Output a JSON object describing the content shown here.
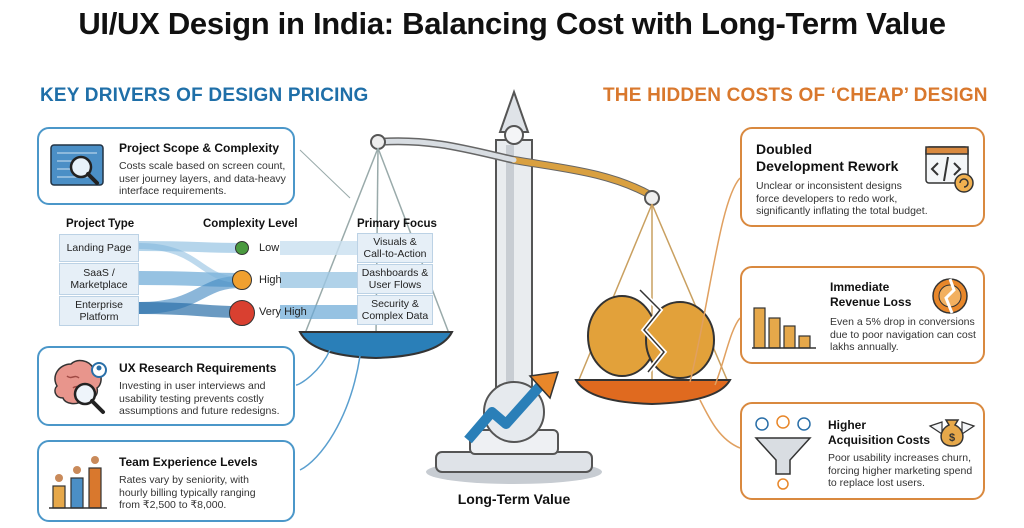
{
  "title": "UI/UX Design in India: Balancing Cost with Long-Term Value",
  "left_section": {
    "heading": "KEY DRIVERS OF DESIGN PRICING",
    "cards": [
      {
        "title": "Project Scope & Complexity",
        "desc": [
          "Costs scale based on screen count,",
          "user journey layers, and data-heavy",
          "interface requirements."
        ]
      },
      {
        "title": "UX Research Requirements",
        "desc": [
          "Investing in user interviews and",
          "usability testing prevents costly",
          "assumptions and future redesigns."
        ]
      },
      {
        "title": "Team Experience Levels",
        "desc": [
          "Rates vary by seniority, with",
          "hourly billing typically ranging",
          "from ₹2,500 to ₹8,000."
        ]
      }
    ],
    "flow": {
      "col_project_type": "Project Type",
      "col_complexity": "Complexity Level",
      "col_focus": "Primary Focus",
      "project_types": [
        [
          "Landing Page"
        ],
        [
          "SaaS /",
          "Marketplace"
        ],
        [
          "Enterprise",
          "Platform"
        ]
      ],
      "levels": [
        "Low",
        "High",
        "Very High"
      ],
      "focus": [
        [
          "Visuals &",
          "Call-to-Action"
        ],
        [
          "Dashboards &",
          "User Flows"
        ],
        [
          "Security &",
          "Complex Data"
        ]
      ]
    }
  },
  "right_section": {
    "heading": "THE HIDDEN COSTS OF ‘CHEAP’ DESIGN",
    "cards": [
      {
        "title": [
          "Doubled",
          "Development Rework"
        ],
        "desc": [
          "Unclear or inconsistent designs",
          "force developers to redo work,",
          "significantly inflating the total budget."
        ]
      },
      {
        "title": [
          "Immediate",
          "Revenue Loss"
        ],
        "desc": [
          "Even a 5% drop in conversions",
          "due to poor navigation can cost",
          "lakhs annually."
        ]
      },
      {
        "title": [
          "Higher",
          "Acquisition Costs"
        ],
        "desc": [
          "Poor usability increases churn,",
          "forcing higher marketing spend",
          "to replace lost users."
        ]
      }
    ]
  },
  "scale_label": "Long-Term Value",
  "colors": {
    "blue": "#1f6fa8",
    "orange": "#d9782d",
    "green": "#4a9a3f",
    "amber": "#f0a030",
    "red": "#d94030"
  },
  "icons": [
    "blueprint-magnifier-icon",
    "brain-magnifier-icon",
    "team-bars-icon",
    "code-window-icon",
    "broken-coin-icon",
    "bar-chart-icon",
    "funnel-users-icon",
    "money-bag-wings-icon",
    "growth-arrow-icon"
  ]
}
